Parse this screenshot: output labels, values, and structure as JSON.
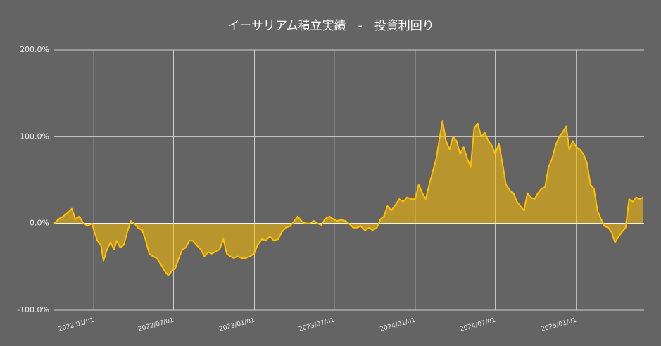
{
  "chart_data": {
    "type": "area",
    "title": "イーサリアム積立実績　-　投資利回り",
    "color": "#ffc000",
    "grid": true,
    "ylim": [
      -100,
      200
    ],
    "yticks": [
      {
        "value": -100,
        "label": "-100.0%"
      },
      {
        "value": 0,
        "label": "0.0%"
      },
      {
        "value": 100,
        "label": "100.0%"
      },
      {
        "value": 200,
        "label": "200.0%"
      }
    ],
    "xlim": [
      "2021/10/03",
      "2025/06/04"
    ],
    "xticks": [
      "2022/01/01",
      "2022/07/01",
      "2023/01/01",
      "2023/07/01",
      "2024/01/01",
      "2024/07/01",
      "2025/01/01"
    ],
    "x": [
      "2021/10/03",
      "2021/10/13",
      "2021/10/23",
      "2021/11/02",
      "2021/11/12",
      "2021/11/20",
      "2021/11/29",
      "2021/12/09",
      "2021/12/18",
      "2021/12/28",
      "2022/01/01",
      "2022/01/09",
      "2022/01/17",
      "2022/01/23",
      "2022/01/31",
      "2022/02/08",
      "2022/02/16",
      "2022/02/22",
      "2022/03/02",
      "2022/03/10",
      "2022/03/18",
      "2022/03/26",
      "2022/04/03",
      "2022/04/11",
      "2022/04/21",
      "2022/04/29",
      "2022/05/07",
      "2022/05/15",
      "2022/05/24",
      "2022/06/03",
      "2022/06/11",
      "2022/06/19",
      "2022/06/27",
      "2022/07/05",
      "2022/07/13",
      "2022/07/21",
      "2022/07/29",
      "2022/08/06",
      "2022/08/14",
      "2022/08/22",
      "2022/09/01",
      "2022/09/09",
      "2022/09/18",
      "2022/09/26",
      "2022/10/06",
      "2022/10/14",
      "2022/10/22",
      "2022/10/30",
      "2022/11/07",
      "2022/11/15",
      "2022/11/23",
      "2022/12/03",
      "2022/12/12",
      "2022/12/22",
      "2022/12/31",
      "2023/01/08",
      "2023/01/18",
      "2023/01/26",
      "2023/02/05",
      "2023/02/14",
      "2023/02/24",
      "2023/03/04",
      "2023/03/13",
      "2023/03/23",
      "2023/03/31",
      "2023/04/09",
      "2023/04/19",
      "2023/04/28",
      "2023/05/06",
      "2023/05/16",
      "2023/05/24",
      "2023/06/02",
      "2023/06/10",
      "2023/06/20",
      "2023/06/29",
      "2023/07/07",
      "2023/07/17",
      "2023/07/26",
      "2023/08/03",
      "2023/08/13",
      "2023/08/22",
      "2023/08/30",
      "2023/09/09",
      "2023/09/18",
      "2023/09/26",
      "2023/10/06",
      "2023/10/14",
      "2023/10/22",
      "2023/10/30",
      "2023/11/08",
      "2023/11/18",
      "2023/11/26",
      "2023/12/05",
      "2023/12/13",
      "2023/12/23",
      "2024/01/01",
      "2024/01/09",
      "2024/01/17",
      "2024/01/25",
      "2024/02/02",
      "2024/02/10",
      "2024/02/18",
      "2024/02/26",
      "2024/03/03",
      "2024/03/11",
      "2024/03/19",
      "2024/03/27",
      "2024/04/04",
      "2024/04/12",
      "2024/04/20",
      "2024/04/28",
      "2024/05/06",
      "2024/05/14",
      "2024/05/22",
      "2024/05/30",
      "2024/06/07",
      "2024/06/15",
      "2024/06/23",
      "2024/07/01",
      "2024/07/09",
      "2024/07/17",
      "2024/07/25",
      "2024/08/03",
      "2024/08/11",
      "2024/08/19",
      "2024/08/27",
      "2024/09/04",
      "2024/09/12",
      "2024/09/20",
      "2024/09/28",
      "2024/10/06",
      "2024/10/14",
      "2024/10/22",
      "2024/10/30",
      "2024/11/07",
      "2024/11/15",
      "2024/11/23",
      "2024/12/01",
      "2024/12/09",
      "2024/12/16",
      "2024/12/24",
      "2025/01/01",
      "2025/01/09",
      "2025/01/17",
      "2025/01/25",
      "2025/02/02",
      "2025/02/10",
      "2025/02/18",
      "2025/02/26",
      "2025/03/06",
      "2025/03/14",
      "2025/03/22",
      "2025/03/30",
      "2025/04/07",
      "2025/04/15",
      "2025/04/23",
      "2025/05/01",
      "2025/05/09",
      "2025/05/17",
      "2025/05/25",
      "2025/06/02"
    ],
    "values": [
      0,
      5,
      8,
      12,
      17,
      5,
      8,
      0,
      -3,
      0,
      -8,
      -20,
      -25,
      -43,
      -30,
      -22,
      -30,
      -20,
      -28,
      -25,
      -10,
      3,
      0,
      -5,
      -8,
      -20,
      -35,
      -38,
      -40,
      -48,
      -55,
      -60,
      -55,
      -52,
      -40,
      -30,
      -28,
      -20,
      -20,
      -25,
      -30,
      -38,
      -33,
      -35,
      -32,
      -30,
      -18,
      -35,
      -38,
      -40,
      -38,
      -40,
      -40,
      -38,
      -35,
      -25,
      -18,
      -20,
      -15,
      -20,
      -18,
      -10,
      -5,
      -3,
      2,
      8,
      2,
      0,
      0,
      3,
      0,
      -2,
      5,
      8,
      5,
      3,
      4,
      3,
      0,
      -5,
      -5,
      -3,
      -8,
      -5,
      -8,
      -5,
      5,
      8,
      20,
      15,
      22,
      28,
      25,
      30,
      28,
      28,
      45,
      35,
      28,
      45,
      60,
      75,
      100,
      118,
      95,
      85,
      100,
      95,
      80,
      88,
      75,
      65,
      110,
      115,
      100,
      105,
      95,
      90,
      80,
      92,
      70,
      45,
      38,
      35,
      25,
      20,
      15,
      35,
      30,
      28,
      35,
      40,
      42,
      65,
      75,
      90,
      100,
      105,
      112,
      85,
      95,
      88,
      85,
      80,
      70,
      45,
      40,
      15,
      5,
      -3,
      -5,
      -10,
      -22,
      -15,
      -10,
      -5,
      28,
      25,
      30,
      28,
      30
    ]
  }
}
